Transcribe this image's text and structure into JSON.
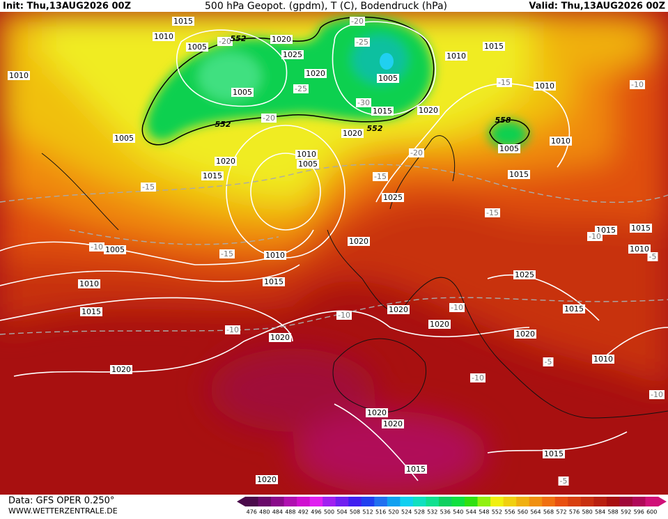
{
  "header": {
    "init": "Init: Thu,13AUG2026 00Z",
    "title": "500 hPa Geopot. (gpdm), T (C), Bodendruck (hPa)",
    "valid": "Valid: Thu,13AUG2026 00Z"
  },
  "footer": {
    "data": "Data: GFS OPER 0.250°",
    "site": "WWW.WETTERZENTRALE.DE"
  },
  "colorbar": {
    "labels": [
      476,
      480,
      484,
      488,
      492,
      496,
      500,
      504,
      508,
      512,
      516,
      520,
      524,
      528,
      532,
      536,
      540,
      544,
      548,
      552,
      556,
      560,
      564,
      568,
      572,
      576,
      580,
      584,
      588,
      592,
      596,
      600
    ],
    "colors": [
      "#4b0a4b",
      "#6a0a6a",
      "#8a0a8a",
      "#b010b0",
      "#d010d0",
      "#e020f0",
      "#a020f0",
      "#7020f0",
      "#4020f0",
      "#2040f0",
      "#2070f0",
      "#10a0f0",
      "#10d0f0",
      "#10e0c0",
      "#10e090",
      "#10d060",
      "#10e040",
      "#30e010",
      "#90f010",
      "#f0f010",
      "#f0d010",
      "#f0b010",
      "#f09010",
      "#f07010",
      "#e85010",
      "#d84010",
      "#c83010",
      "#b82010",
      "#a81010",
      "#a00838",
      "#b00858",
      "#d01078"
    ]
  },
  "map": {
    "pressure_labels": [
      1015,
      1010,
      1005,
      1020,
      1025,
      1020,
      1005,
      1005,
      1015,
      1020,
      1020,
      1010,
      1015,
      1010,
      1010,
      1005,
      1020,
      1015,
      1010,
      1005,
      1005,
      1010,
      1015,
      1025,
      1020,
      1005,
      1010,
      1010,
      1015,
      1015,
      1025,
      1015,
      1015,
      1010,
      1020,
      1020,
      1015,
      1020,
      1020,
      1020,
      1010,
      1020,
      1020,
      1015,
      1015,
      1020
    ],
    "temperature_labels": [
      -20,
      -25,
      -20,
      -25,
      -30,
      -20,
      -15,
      -10,
      -20,
      -15,
      -15,
      -15,
      -10,
      -15,
      -10,
      -5,
      -10,
      -10,
      -10,
      -5,
      -10,
      -10,
      -5
    ],
    "geopotential_labels": [
      552,
      552,
      552,
      558
    ]
  }
}
